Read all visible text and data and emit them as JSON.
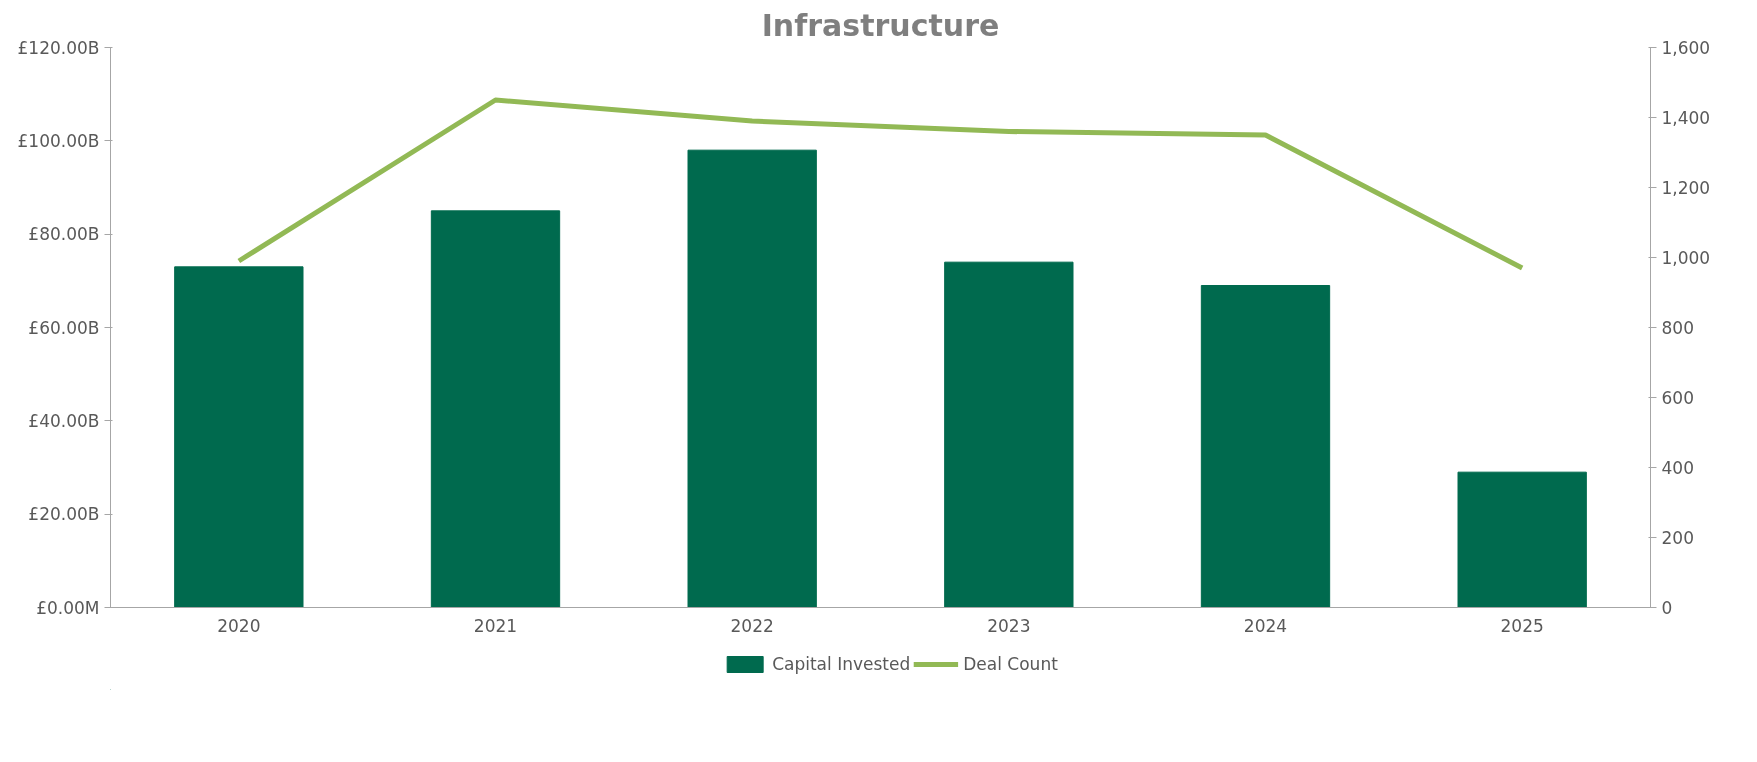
{
  "chart_data": {
    "type": "bar",
    "title": "Infrastructure",
    "categories": [
      "2020",
      "2021",
      "2022",
      "2023",
      "2024",
      "2025"
    ],
    "series": [
      {
        "name": "Capital Invested",
        "color": "#006a4e",
        "values": [
          73,
          85,
          98,
          74,
          69,
          29
        ]
      },
      {
        "name": "Deal Count",
        "type": "line",
        "axis": "y2",
        "color": "#92b955",
        "values": [
          990,
          1450,
          1390,
          1360,
          1350,
          970
        ]
      }
    ],
    "ylim": [
      0,
      120
    ],
    "yticks": [
      {
        "value": 0,
        "label": "£0.00M"
      },
      {
        "value": 20,
        "label": "£20.00B"
      },
      {
        "value": 40,
        "label": "£40.00B"
      },
      {
        "value": 60,
        "label": "£60.00B"
      },
      {
        "value": 80,
        "label": "£80.00B"
      },
      {
        "value": 100,
        "label": "£100.00B"
      },
      {
        "value": 120,
        "label": "£120.00B"
      }
    ],
    "y2lim": [
      0,
      1600
    ],
    "y2ticks": [
      {
        "value": 0,
        "label": "0"
      },
      {
        "value": 200,
        "label": "200"
      },
      {
        "value": 400,
        "label": "400"
      },
      {
        "value": 600,
        "label": "600"
      },
      {
        "value": 800,
        "label": "800"
      },
      {
        "value": 1000,
        "label": "1,000"
      },
      {
        "value": 1200,
        "label": "1,200"
      },
      {
        "value": 1400,
        "label": "1,400"
      },
      {
        "value": 1600,
        "label": "1,600"
      }
    ],
    "grid": false,
    "legend": "bottom",
    "marker": "none",
    "line_style": "solid"
  }
}
